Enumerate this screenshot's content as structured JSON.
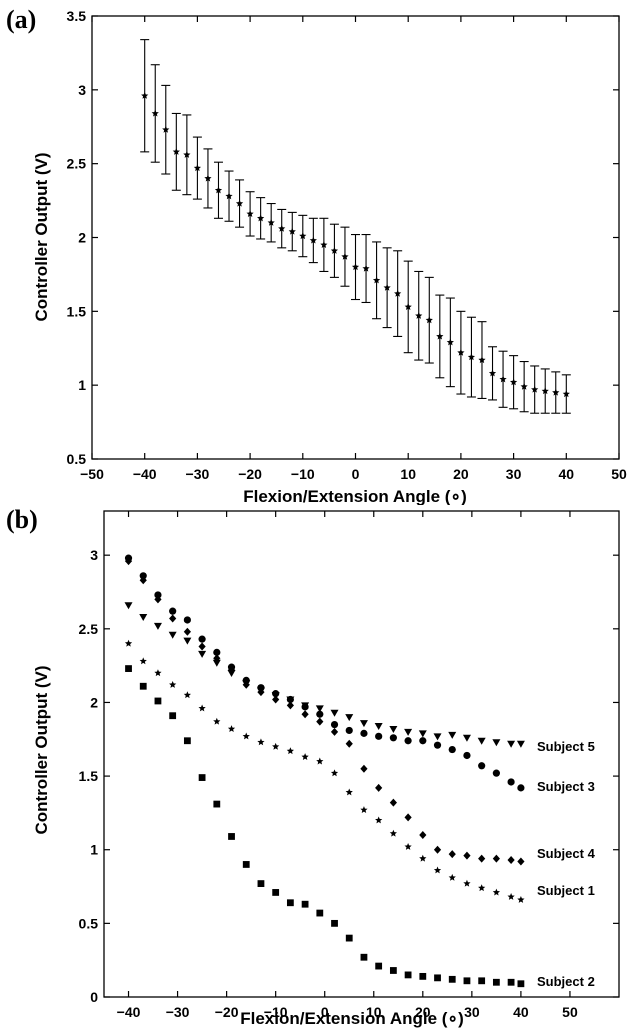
{
  "chart_data": [
    {
      "panel_label": "(a)",
      "type": "scatter",
      "xlabel": "Flexion/Extension Angle (∘)",
      "ylabel": "Controller Output (V)",
      "xlim": [
        -50,
        50
      ],
      "ylim": [
        0.5,
        3.5
      ],
      "xticks": [
        "−50",
        "−40",
        "−30",
        "−20",
        "−10",
        "0",
        "10",
        "20",
        "30",
        "40",
        "50"
      ],
      "yticks": [
        "0.5",
        "1",
        "1.5",
        "2",
        "2.5",
        "3",
        "3.5"
      ],
      "series": [
        {
          "marker": "star",
          "x": [
            -40,
            -38,
            -36,
            -34,
            -32,
            -30,
            -28,
            -26,
            -24,
            -22,
            -20,
            -18,
            -16,
            -14,
            -12,
            -10,
            -8,
            -6,
            -4,
            -2,
            0,
            2,
            4,
            6,
            8,
            10,
            12,
            14,
            16,
            18,
            20,
            22,
            24,
            26,
            28,
            30,
            32,
            34,
            36,
            38,
            40
          ],
          "y": [
            2.96,
            2.84,
            2.73,
            2.58,
            2.56,
            2.47,
            2.4,
            2.32,
            2.28,
            2.23,
            2.16,
            2.13,
            2.1,
            2.06,
            2.04,
            2.01,
            1.98,
            1.95,
            1.91,
            1.87,
            1.8,
            1.79,
            1.71,
            1.66,
            1.62,
            1.53,
            1.47,
            1.44,
            1.33,
            1.29,
            1.22,
            1.19,
            1.17,
            1.08,
            1.04,
            1.02,
            0.99,
            0.97,
            0.96,
            0.95,
            0.94
          ],
          "yerr": [
            0.38,
            0.33,
            0.3,
            0.26,
            0.27,
            0.21,
            0.2,
            0.19,
            0.17,
            0.16,
            0.15,
            0.14,
            0.13,
            0.13,
            0.13,
            0.14,
            0.15,
            0.18,
            0.18,
            0.2,
            0.22,
            0.23,
            0.26,
            0.27,
            0.29,
            0.31,
            0.3,
            0.29,
            0.28,
            0.3,
            0.28,
            0.27,
            0.26,
            0.18,
            0.19,
            0.18,
            0.17,
            0.16,
            0.15,
            0.14,
            0.13
          ]
        }
      ]
    },
    {
      "panel_label": "(b)",
      "type": "scatter",
      "xlabel": "Flexion/Extension Angle (∘)",
      "ylabel": "Controller Output (V)",
      "xlim": [
        -45,
        60
      ],
      "ylim": [
        0,
        3.3
      ],
      "xticks": [
        "−40",
        "−30",
        "−20",
        "−10",
        "0",
        "10",
        "20",
        "30",
        "40",
        "50"
      ],
      "yticks": [
        "0",
        "0.5",
        "1",
        "1.5",
        "2",
        "2.5",
        "3"
      ],
      "series": [
        {
          "name": "Subject 5",
          "marker": "triangle-down",
          "x": [
            -40,
            -37,
            -34,
            -31,
            -28,
            -25,
            -22,
            -19,
            -16,
            -13,
            -10,
            -7,
            -4,
            -1,
            2,
            5,
            8,
            11,
            14,
            17,
            20,
            23,
            26,
            29,
            32,
            35,
            38,
            40
          ],
          "y": [
            2.66,
            2.58,
            2.52,
            2.46,
            2.42,
            2.33,
            2.27,
            2.2,
            2.13,
            2.08,
            2.05,
            2.02,
            1.98,
            1.96,
            1.93,
            1.9,
            1.86,
            1.84,
            1.82,
            1.8,
            1.79,
            1.77,
            1.78,
            1.76,
            1.74,
            1.73,
            1.72,
            1.72
          ]
        },
        {
          "name": "Subject 3",
          "marker": "circle",
          "x": [
            -40,
            -37,
            -34,
            -31,
            -28,
            -25,
            -22,
            -19,
            -16,
            -13,
            -10,
            -7,
            -4,
            -1,
            2,
            5,
            8,
            11,
            14,
            17,
            20,
            23,
            26,
            29,
            32,
            35,
            38,
            40
          ],
          "y": [
            2.98,
            2.86,
            2.73,
            2.62,
            2.56,
            2.43,
            2.34,
            2.24,
            2.15,
            2.1,
            2.06,
            2.02,
            1.97,
            1.92,
            1.85,
            1.81,
            1.79,
            1.77,
            1.76,
            1.74,
            1.74,
            1.71,
            1.68,
            1.64,
            1.57,
            1.52,
            1.46,
            1.42
          ]
        },
        {
          "name": "Subject 4",
          "marker": "diamond",
          "x": [
            -40,
            -37,
            -34,
            -31,
            -28,
            -25,
            -22,
            -19,
            -16,
            -13,
            -10,
            -7,
            -4,
            -1,
            2,
            5,
            8,
            11,
            14,
            17,
            20,
            23,
            26,
            29,
            32,
            35,
            38,
            40
          ],
          "y": [
            2.96,
            2.83,
            2.7,
            2.57,
            2.48,
            2.38,
            2.3,
            2.22,
            2.12,
            2.07,
            2.02,
            1.98,
            1.92,
            1.87,
            1.8,
            1.72,
            1.55,
            1.42,
            1.32,
            1.22,
            1.1,
            1.0,
            0.97,
            0.96,
            0.94,
            0.94,
            0.93,
            0.92
          ]
        },
        {
          "name": "Subject 1",
          "marker": "star",
          "x": [
            -40,
            -37,
            -34,
            -31,
            -28,
            -25,
            -22,
            -19,
            -16,
            -13,
            -10,
            -7,
            -4,
            -1,
            2,
            5,
            8,
            11,
            14,
            17,
            20,
            23,
            26,
            29,
            32,
            35,
            38,
            40
          ],
          "y": [
            2.4,
            2.28,
            2.2,
            2.12,
            2.05,
            1.96,
            1.87,
            1.82,
            1.77,
            1.73,
            1.7,
            1.67,
            1.63,
            1.6,
            1.52,
            1.39,
            1.27,
            1.2,
            1.11,
            1.02,
            0.94,
            0.86,
            0.81,
            0.77,
            0.74,
            0.71,
            0.68,
            0.66
          ]
        },
        {
          "name": "Subject 2",
          "marker": "square",
          "x": [
            -40,
            -37,
            -34,
            -31,
            -28,
            -25,
            -22,
            -19,
            -16,
            -13,
            -10,
            -7,
            -4,
            -1,
            2,
            5,
            8,
            11,
            14,
            17,
            20,
            23,
            26,
            29,
            32,
            35,
            38,
            40
          ],
          "y": [
            2.23,
            2.11,
            2.01,
            1.91,
            1.74,
            1.49,
            1.31,
            1.09,
            0.9,
            0.77,
            0.71,
            0.64,
            0.63,
            0.57,
            0.5,
            0.4,
            0.27,
            0.21,
            0.18,
            0.15,
            0.14,
            0.13,
            0.12,
            0.11,
            0.11,
            0.1,
            0.1,
            0.09
          ]
        }
      ]
    }
  ]
}
